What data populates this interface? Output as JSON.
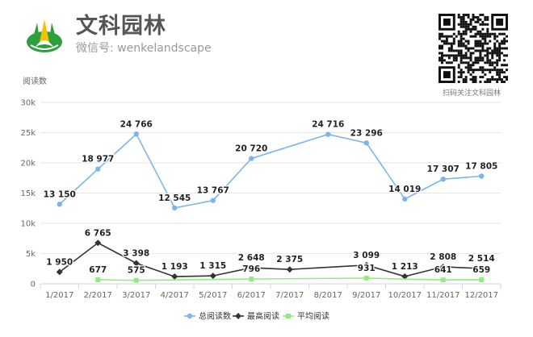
{
  "header": {
    "title": "文科园林",
    "subtitle": "微信号: wenkelandscape",
    "qr_caption": "扫码关注文科园林"
  },
  "colors": {
    "total": "#7cb5ec",
    "max": "#333333",
    "avg": "#90ed7d",
    "grid": "#e6e6e6",
    "logo_green": "#2e9e3e",
    "logo_yellow": "#f2c300"
  },
  "chart_data": {
    "type": "line",
    "ylabel": "阅读数",
    "categories": [
      "1/2017",
      "2/2017",
      "3/2017",
      "4/2017",
      "5/2017",
      "6/2017",
      "7/2017",
      "8/2017",
      "9/2017",
      "10/2017",
      "11/2017",
      "12/2017"
    ],
    "ylim": [
      0,
      30000
    ],
    "yticks": [
      {
        "value": 0,
        "label": "0"
      },
      {
        "value": 5000,
        "label": "5k"
      },
      {
        "value": 10000,
        "label": "10k"
      },
      {
        "value": 15000,
        "label": "15k"
      },
      {
        "value": 20000,
        "label": "20k"
      },
      {
        "value": 25000,
        "label": "25k"
      },
      {
        "value": 30000,
        "label": "30k"
      }
    ],
    "grid": true,
    "legend_position": "bottom-center",
    "series": [
      {
        "name": "总阅读数",
        "color": "#7cb5ec",
        "marker": "circle",
        "values": [
          13150,
          18977,
          24766,
          12545,
          13767,
          20720,
          null,
          24716,
          23296,
          14019,
          17307,
          17805
        ],
        "labels": [
          "13 150",
          "18 977",
          "24 766",
          "12 545",
          "13 767",
          "20 720",
          "",
          "24 716",
          "23 296",
          "14 019",
          "17 307",
          "17 805"
        ]
      },
      {
        "name": "最高阅读",
        "color": "#333333",
        "marker": "diamond",
        "values": [
          1950,
          6765,
          3398,
          1193,
          1315,
          2648,
          2375,
          null,
          3099,
          1213,
          2808,
          2514
        ],
        "labels": [
          "1 950",
          "6 765",
          "3 398",
          "1 193",
          "1 315",
          "2 648",
          "2 375",
          "",
          "3 099",
          "1 213",
          "2 808",
          "2 514"
        ]
      },
      {
        "name": "平均阅读",
        "color": "#90ed7d",
        "marker": "square",
        "values": [
          null,
          677,
          575,
          null,
          null,
          796,
          null,
          null,
          931,
          null,
          641,
          659
        ],
        "labels": [
          "",
          "677",
          "575",
          "",
          "",
          "796",
          "",
          "",
          "931",
          "",
          "641",
          "659"
        ]
      }
    ]
  }
}
